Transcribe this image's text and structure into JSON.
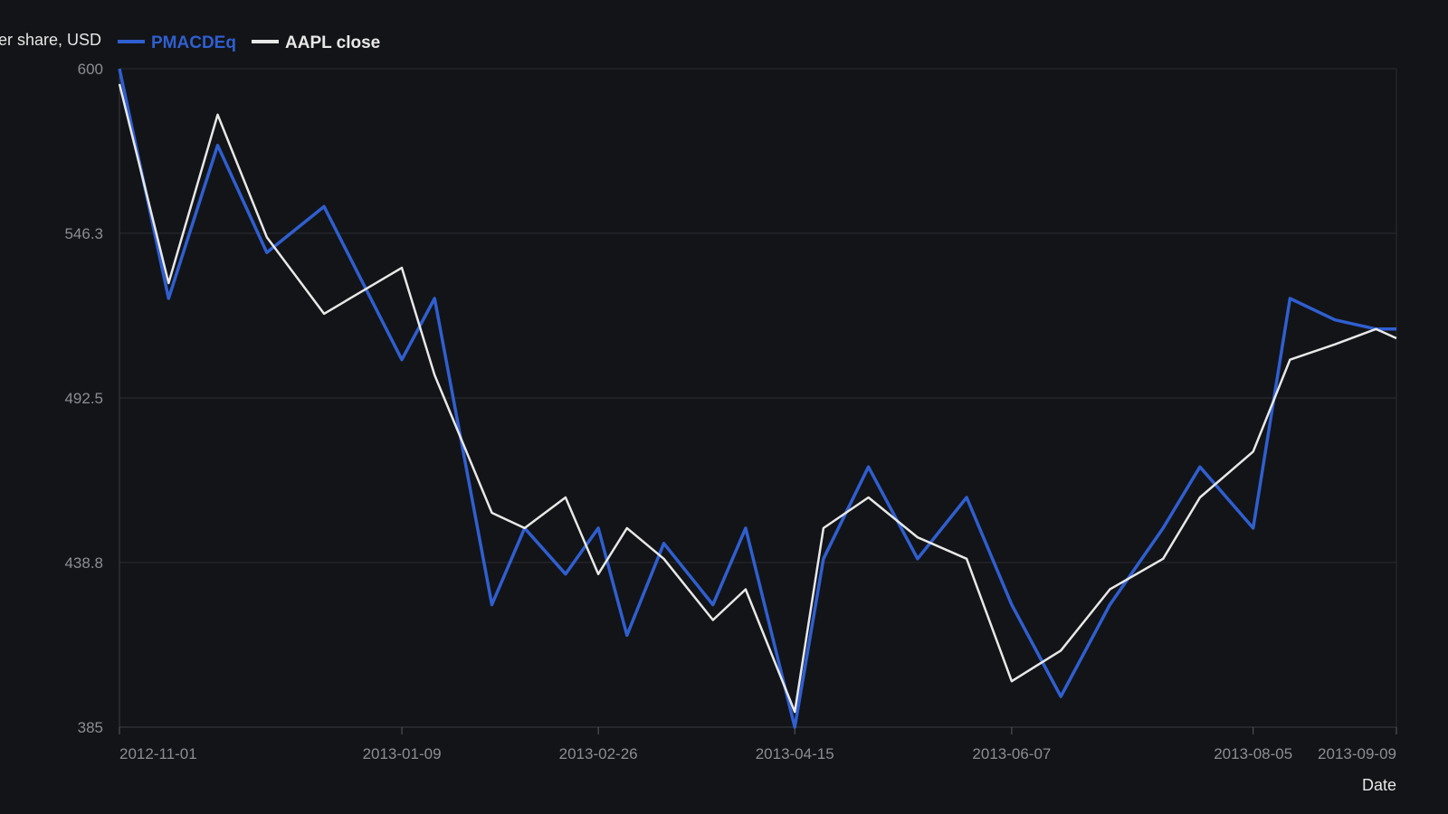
{
  "chart_data": {
    "type": "line",
    "ylabel": "Price per share, USD",
    "xlabel": "Date",
    "ylim": [
      385,
      600
    ],
    "y_ticks": [
      "385",
      "438.8",
      "492.5",
      "546.3",
      "600"
    ],
    "x_ticks": [
      "2012-11-01",
      "2013-01-09",
      "2013-02-26",
      "2013-04-15",
      "2013-06-07",
      "2013-08-05",
      "2013-09-09"
    ],
    "grid": true,
    "legend_position": "top-left",
    "x": [
      "2012-11-01",
      "2012-11-13",
      "2012-11-25",
      "2012-12-07",
      "2012-12-21",
      "2013-01-09",
      "2013-01-17",
      "2013-01-31",
      "2013-02-08",
      "2013-02-18",
      "2013-02-26",
      "2013-03-05",
      "2013-03-14",
      "2013-03-26",
      "2013-04-03",
      "2013-04-15",
      "2013-04-22",
      "2013-05-03",
      "2013-05-15",
      "2013-05-27",
      "2013-06-07",
      "2013-06-19",
      "2013-07-01",
      "2013-07-14",
      "2013-07-23",
      "2013-08-05",
      "2013-08-14",
      "2013-08-25",
      "2013-09-04",
      "2013-09-09"
    ],
    "series": [
      {
        "name": "PMACDEq",
        "color": "#2f5fd0",
        "values": [
          600,
          525,
          575,
          540,
          555,
          505,
          525,
          425,
          450,
          435,
          450,
          415,
          445,
          425,
          450,
          385,
          440,
          470,
          440,
          460,
          425,
          395,
          425,
          450,
          470,
          450,
          525,
          518,
          515,
          515
        ]
      },
      {
        "name": "AAPL close",
        "color": "#e8e8e8",
        "values": [
          595,
          530,
          585,
          545,
          520,
          535,
          500,
          455,
          450,
          460,
          435,
          450,
          440,
          420,
          430,
          390,
          450,
          460,
          447,
          440,
          400,
          410,
          430,
          440,
          460,
          475,
          505,
          510,
          515,
          512
        ]
      }
    ]
  }
}
